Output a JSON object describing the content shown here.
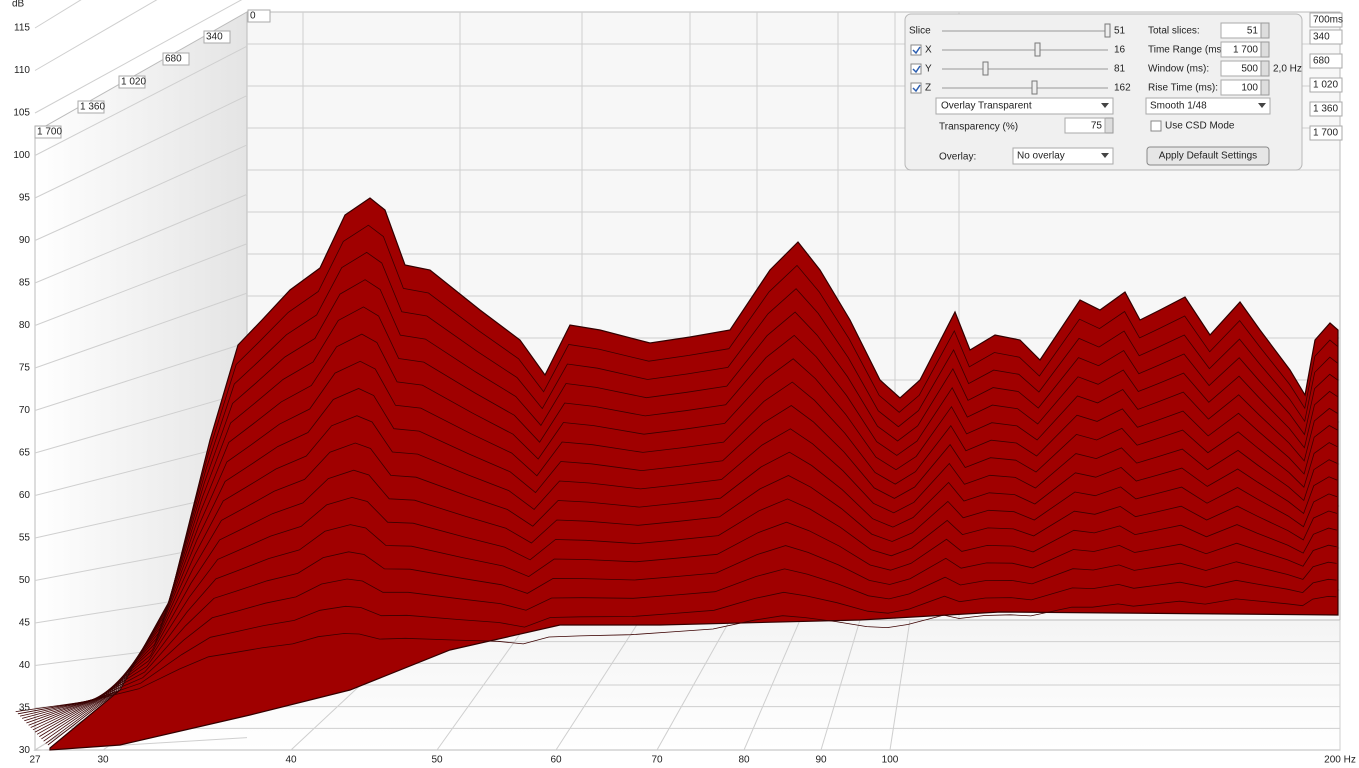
{
  "axis": {
    "y_unit": "dB",
    "y_ticks": [
      "115",
      "110",
      "105",
      "100",
      "95",
      "90",
      "85",
      "80",
      "75",
      "70",
      "65",
      "60",
      "55",
      "50",
      "45",
      "40",
      "35",
      "30"
    ],
    "x_ticks": [
      "27",
      "30",
      "40",
      "50",
      "60",
      "70",
      "80",
      "90",
      "100",
      "200 Hz"
    ],
    "time_ticks_left": [
      "0",
      "340",
      "680",
      "1 020",
      "1 360",
      "1 700"
    ],
    "time_ticks_right": [
      "700ms",
      "340",
      "680",
      "1 020",
      "1 360",
      "1 700"
    ]
  },
  "controls": {
    "sliders": [
      {
        "label": "Slice",
        "value": "51"
      },
      {
        "label": "X",
        "value": "16"
      },
      {
        "label": "Y",
        "value": "81"
      },
      {
        "label": "Z",
        "value": "162"
      }
    ],
    "fields": [
      {
        "label": "Total slices:",
        "value": "51"
      },
      {
        "label": "Time Range (ms):",
        "value": "1 700"
      },
      {
        "label": "Window (ms):",
        "value": "500",
        "extra": "2,0 Hz"
      },
      {
        "label": "Rise Time (ms):",
        "value": "100"
      }
    ],
    "mode_dropdown": "Overlay Transparent",
    "smoothing_dropdown": "Smooth 1/48",
    "transparency": {
      "label": "Transparency (%)",
      "value": "75"
    },
    "csd_checkbox": "Use CSD Mode",
    "overlay": {
      "label": "Overlay:",
      "value": "No overlay"
    },
    "apply_button": "Apply Default Settings"
  }
}
